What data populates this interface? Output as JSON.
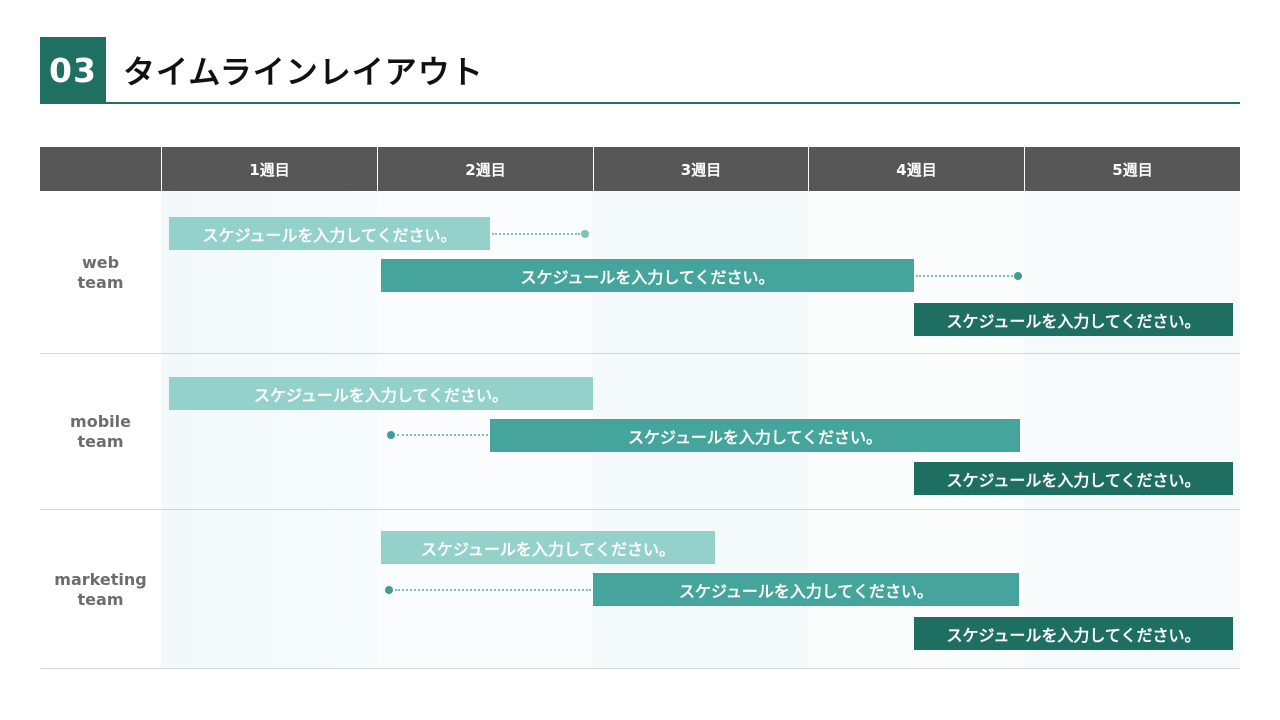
{
  "title": {
    "number": "03",
    "text": "タイムラインレイアウト"
  },
  "weeks": [
    "1週目",
    "2週目",
    "3週目",
    "4週目",
    "5週目"
  ],
  "teams": [
    {
      "name_line1": "web",
      "name_line2": "team",
      "bars": [
        {
          "label": "スケジュールを入力してください。"
        },
        {
          "label": "スケジュールを入力してください。"
        },
        {
          "label": "スケジュールを入力してください。"
        }
      ]
    },
    {
      "name_line1": "mobile",
      "name_line2": "team",
      "bars": [
        {
          "label": "スケジュールを入力してください。"
        },
        {
          "label": "スケジュールを入力してください。"
        },
        {
          "label": "スケジュールを入力してください。"
        }
      ]
    },
    {
      "name_line1": "marketing",
      "name_line2": "team",
      "bars": [
        {
          "label": "スケジュールを入力してください。"
        },
        {
          "label": "スケジュールを入力してください。"
        },
        {
          "label": "スケジュールを入力してください。"
        }
      ]
    }
  ],
  "colors": {
    "accent": "#1f6f62",
    "bar_light": "#93d1ca",
    "bar_mid": "#45a59c",
    "bar_dark": "#1e6f62",
    "header_bg": "#575757"
  }
}
